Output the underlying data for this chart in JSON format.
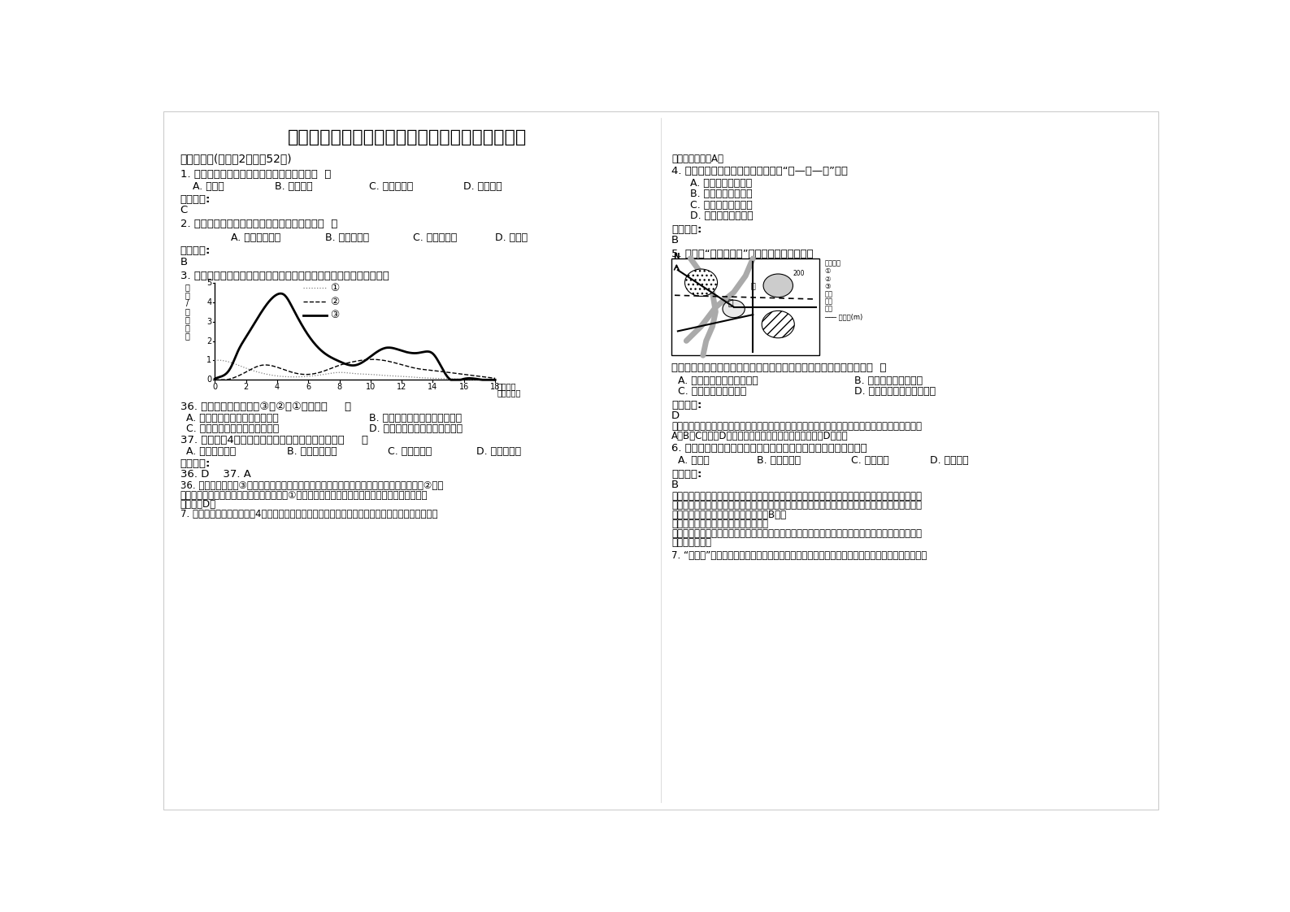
{
  "title": "四川省攀枝花市倮果中学高一地理联考试题含解析",
  "bg_color": "#ffffff",
  "text_color": "#000000",
  "q4_text": "4. 下列各组国家中，人口增长模式为“低—低—低”的是",
  "q5_text": "5. 下图为“某城市略图”。读下图，完成下题。",
  "q7_right_text": "7. “棒棒工”是对重庆市一个特定劳动群体的称呼。他们爬坡上坎，以棍棒、绳索为劳动工具，帮人"
}
